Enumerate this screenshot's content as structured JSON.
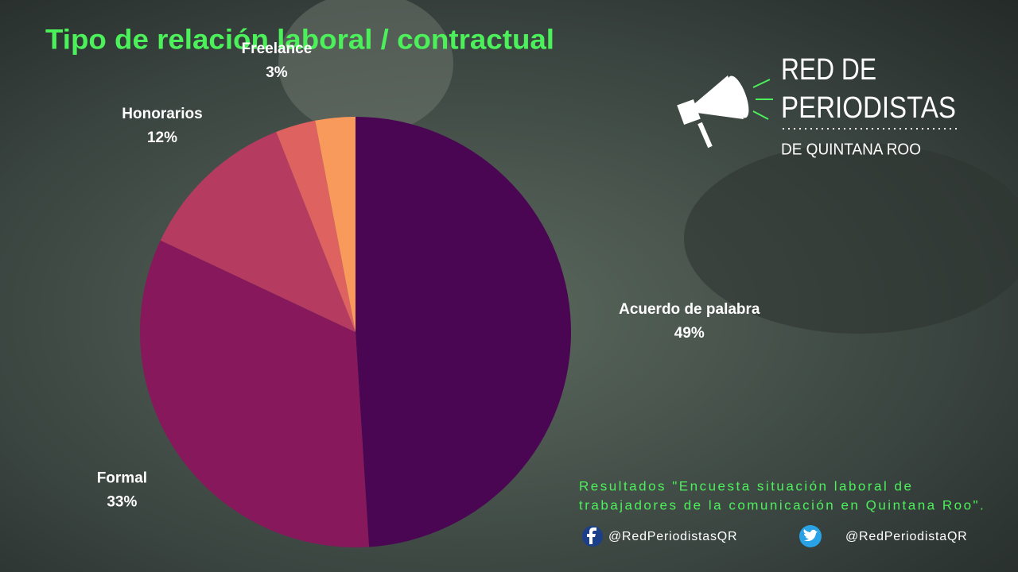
{
  "chart_data": {
    "type": "pie",
    "title": "Tipo de relación laboral / contractual",
    "categories": [
      "Acuerdo de palabra",
      "Formal",
      "Honorarios",
      "Freelance",
      null
    ],
    "values": [
      49,
      33,
      12,
      3,
      3
    ],
    "value_labels": [
      "49%",
      "33%",
      "12%",
      "3%",
      null
    ],
    "colors": [
      "#4a0652",
      "#87185c",
      "#b53c60",
      "#dd6260",
      "#f89a5c"
    ]
  },
  "logo": {
    "line1": "RED DE",
    "line2": "PERIODISTAS",
    "line3": "DE QUINTANA ROO"
  },
  "footer": {
    "line1": "Resultados \"Encuesta situación laboral de",
    "line2": "trabajadores de la comunicación en Quintana Roo\".",
    "facebook": "@RedPeriodistasQR",
    "twitter": "@RedPeriodistaQR"
  }
}
